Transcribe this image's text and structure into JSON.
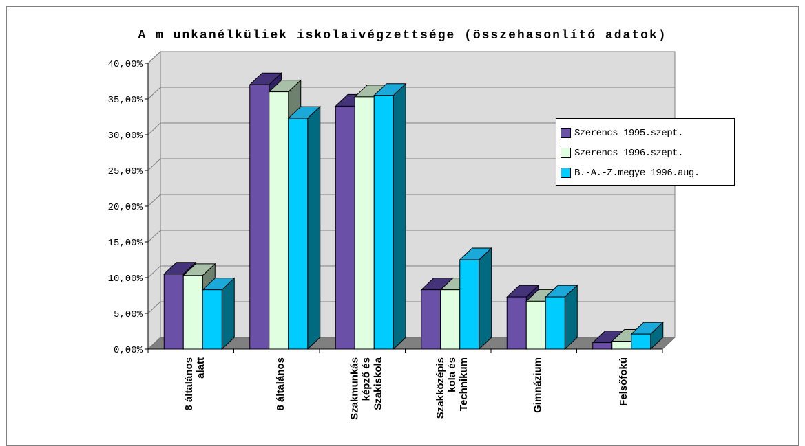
{
  "chart_data": {
    "type": "bar",
    "title": "A m unkanélküliek iskolaivégzettsége (összehasonlító adatok)",
    "categories": [
      [
        "8 általános",
        "alatt"
      ],
      [
        "8 általános"
      ],
      [
        "Szakmunkás",
        "képző és",
        "Szakiskola"
      ],
      [
        "Szakközépis",
        "kola és",
        "Technikum"
      ],
      [
        "Gimnázium"
      ],
      [
        "Felsőfokú"
      ]
    ],
    "series": [
      {
        "name": "Szerencs 1995.szept.",
        "values": [
          10.5,
          37.0,
          34.0,
          8.3,
          7.3,
          0.9
        ]
      },
      {
        "name": "Szerencs 1996.szept.",
        "values": [
          10.3,
          36.0,
          35.3,
          8.3,
          6.7,
          1.1
        ]
      },
      {
        "name": "B.-A.-Z.megye 1996.aug.",
        "values": [
          8.3,
          32.3,
          35.5,
          12.5,
          7.3,
          2.1
        ]
      }
    ],
    "y_ticks": [
      "0,00%",
      "5,00%",
      "10,00%",
      "15,00%",
      "20,00%",
      "25,00%",
      "30,00%",
      "35,00%",
      "40,00%"
    ],
    "ylim": [
      0,
      40
    ],
    "grid": true,
    "legend_position": "right",
    "colors": {
      "series_front": [
        "#6a50a7",
        "#e0ffe0",
        "#00ccff"
      ],
      "series_top": [
        "#45337a",
        "#a8c0a8",
        "#1aa9d9"
      ],
      "series_side": [
        "#2e2060",
        "#6e806e",
        "#006a80"
      ],
      "wall": "#dcdcdc",
      "floor": "#808080"
    }
  }
}
